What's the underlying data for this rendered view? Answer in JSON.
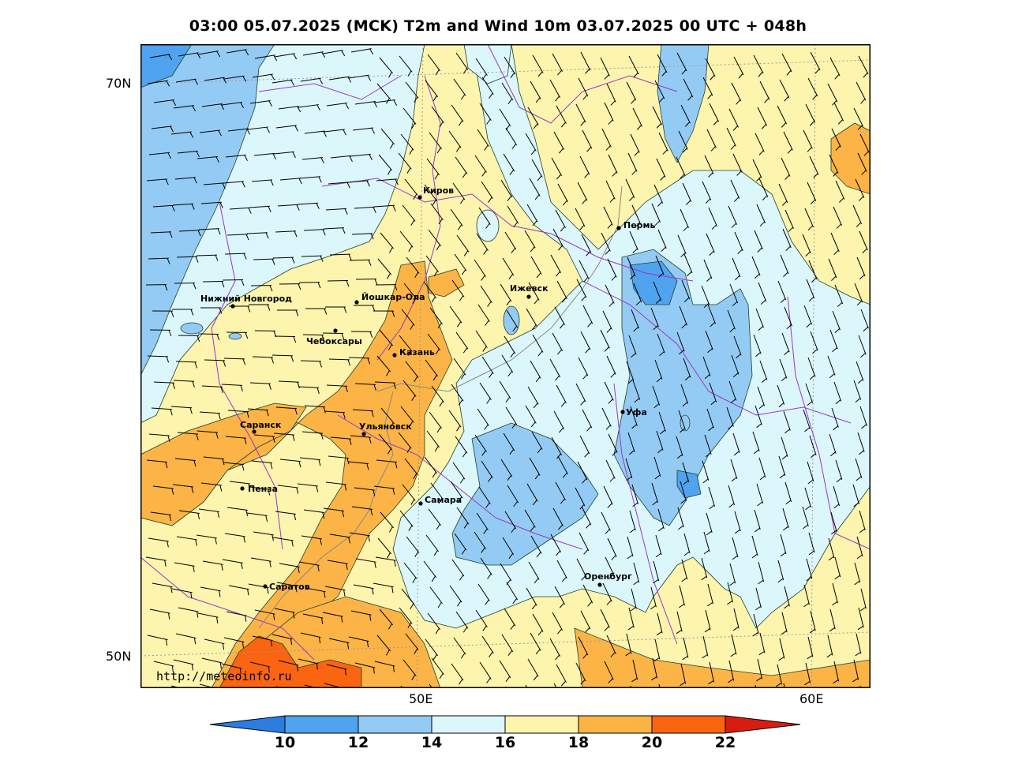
{
  "title": "03:00 05.07.2025 (MCK) T2m and Wind 10m 03.07.2025 00 UTC + 048h",
  "watermark": "http://meteoinfo.ru",
  "lat_labels": [
    "70N",
    "50N"
  ],
  "lon_labels": [
    "50E",
    "60E"
  ],
  "cities": [
    {
      "name": "Киров"
    },
    {
      "name": "Пермь"
    },
    {
      "name": "Нижний Новгород"
    },
    {
      "name": "Йошкар-Ола"
    },
    {
      "name": "Ижевск"
    },
    {
      "name": "Чебоксары"
    },
    {
      "name": "Казань"
    },
    {
      "name": "Уфа"
    },
    {
      "name": "Саранск"
    },
    {
      "name": "Ульяновск"
    },
    {
      "name": "Пенза"
    },
    {
      "name": "Самара"
    },
    {
      "name": "Оренбург"
    },
    {
      "name": "Саратов"
    }
  ],
  "colorbar": {
    "ticks": [
      "10",
      "12",
      "14",
      "16",
      "18",
      "20",
      "22"
    ],
    "colors": [
      "#2b7de0",
      "#4fa3ef",
      "#94cbf4",
      "#dcf7fb",
      "#fdf4ad",
      "#fbb445",
      "#fb6410",
      "#d71d10"
    ]
  }
}
